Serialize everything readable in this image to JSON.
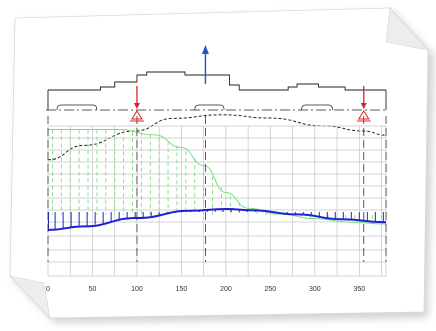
{
  "colors": {
    "background": "#ffffff",
    "page": "#ffffff",
    "page_shadow": "#c8c8c8",
    "outline": "#222222",
    "grid": "#c4c4c4",
    "green": "#7be07b",
    "blue": "#1f1fd8",
    "red": "#e02020",
    "arrow": "#2a4fd0"
  },
  "axis": {
    "min": 0,
    "max": 380,
    "ticks": [
      "0",
      "50",
      "100",
      "150",
      "200",
      "250",
      "300",
      "350"
    ],
    "tick_values": [
      0,
      50,
      100,
      150,
      200,
      250,
      300,
      350
    ]
  },
  "shaft": {
    "section_outline": [
      [
        0,
        20
      ],
      [
        59,
        20
      ],
      [
        59,
        23
      ],
      [
        75,
        23
      ],
      [
        75,
        28
      ],
      [
        100,
        28
      ],
      [
        100,
        35
      ],
      [
        111,
        35
      ],
      [
        111,
        38
      ],
      [
        154,
        38
      ],
      [
        154,
        35
      ],
      [
        204,
        35
      ],
      [
        204,
        25
      ],
      [
        215,
        25
      ],
      [
        215,
        20
      ],
      [
        270,
        20
      ],
      [
        270,
        23
      ],
      [
        280,
        23
      ],
      [
        280,
        26
      ],
      [
        304,
        26
      ],
      [
        304,
        23
      ],
      [
        334,
        23
      ],
      [
        334,
        20
      ],
      [
        380,
        20
      ]
    ],
    "deflection": [
      [
        0,
        -8
      ],
      [
        40,
        -4
      ],
      [
        98,
        0
      ],
      [
        140,
        3.5
      ],
      [
        195,
        4.5
      ],
      [
        250,
        3.6
      ],
      [
        310,
        1.4
      ],
      [
        355,
        0
      ],
      [
        380,
        -1.2
      ]
    ]
  },
  "supports": [
    {
      "name": "left-bearing",
      "position": 100
    },
    {
      "name": "right-bearing",
      "position": 355
    }
  ],
  "load": {
    "name": "radial-force",
    "position": 177
  },
  "diagrams": {
    "green_curve": [
      [
        0,
        190
      ],
      [
        80,
        190
      ],
      [
        120,
        178
      ],
      [
        150,
        150
      ],
      [
        175,
        110
      ],
      [
        200,
        50
      ],
      [
        225,
        15
      ],
      [
        260,
        2
      ],
      [
        300,
        -8
      ],
      [
        340,
        -16
      ],
      [
        380,
        -20
      ]
    ],
    "blue_curve": [
      [
        0,
        -30
      ],
      [
        40,
        -24
      ],
      [
        100,
        -10
      ],
      [
        160,
        2
      ],
      [
        200,
        5
      ],
      [
        230,
        3
      ],
      [
        280,
        -4
      ],
      [
        330,
        -12
      ],
      [
        380,
        -17
      ]
    ]
  }
}
